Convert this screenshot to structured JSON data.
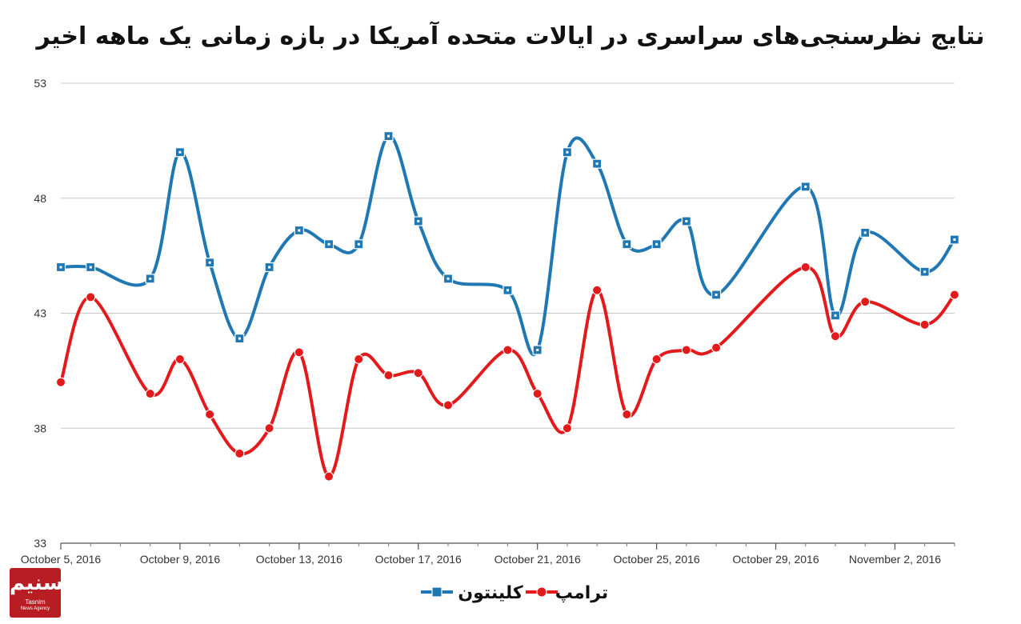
{
  "chart_data": {
    "type": "line",
    "title": "نتایج نظرسنجی‌های سراسری در ایالات متحده آمریکا در بازه زمانی یک ماهه اخیر",
    "xlabel": "",
    "ylabel": "",
    "ylim": [
      33,
      53
    ],
    "yticks": [
      33,
      38,
      43,
      48,
      53
    ],
    "grid": true,
    "legend_position": "bottom",
    "x_tick_labels": [
      "October 5, 2016",
      "October 9, 2016",
      "October 13, 2016",
      "October 17, 2016",
      "October 21, 2016",
      "October 25, 2016",
      "October 29, 2016",
      "November 2, 2016"
    ],
    "x": [
      "2016-10-05",
      "2016-10-06",
      "2016-10-08",
      "2016-10-09",
      "2016-10-10",
      "2016-10-11",
      "2016-10-12",
      "2016-10-13",
      "2016-10-14",
      "2016-10-15",
      "2016-10-16",
      "2016-10-17",
      "2016-10-18",
      "2016-10-20",
      "2016-10-21",
      "2016-10-22",
      "2016-10-23",
      "2016-10-24",
      "2016-10-25",
      "2016-10-26",
      "2016-10-27",
      "2016-10-30",
      "2016-10-31",
      "2016-11-01",
      "2016-11-03",
      "2016-11-04"
    ],
    "series": [
      {
        "name": "کلینتون",
        "color": "#1f77b4",
        "marker": "square",
        "values": [
          45.0,
          45.0,
          44.5,
          50.0,
          45.2,
          41.9,
          45.0,
          46.6,
          46.0,
          46.0,
          50.7,
          47.0,
          44.5,
          44.0,
          41.4,
          50.0,
          49.5,
          46.0,
          46.0,
          47.0,
          43.8,
          48.5,
          42.9,
          46.5,
          44.8,
          46.2
        ]
      },
      {
        "name": "ترامپ",
        "color": "#e31a1c",
        "marker": "circle",
        "values": [
          40.0,
          43.7,
          39.5,
          41.0,
          38.6,
          36.9,
          38.0,
          41.3,
          35.9,
          41.0,
          40.3,
          40.4,
          39.0,
          41.4,
          39.5,
          38.0,
          44.0,
          38.6,
          41.0,
          41.4,
          41.5,
          45.0,
          42.0,
          43.5,
          42.5,
          43.8
        ]
      }
    ]
  },
  "legend": {
    "clinton": "کلینتون",
    "trump": "ترامپ"
  },
  "logo": {
    "main_text": "تسنیم",
    "sub_text": "Tasnim",
    "sub_text2": "News Agency"
  },
  "colors": {
    "clinton": "#1f77b4",
    "trump": "#e31a1c",
    "grid": "#c8c8c8",
    "logo_bg": "#b81d24"
  }
}
